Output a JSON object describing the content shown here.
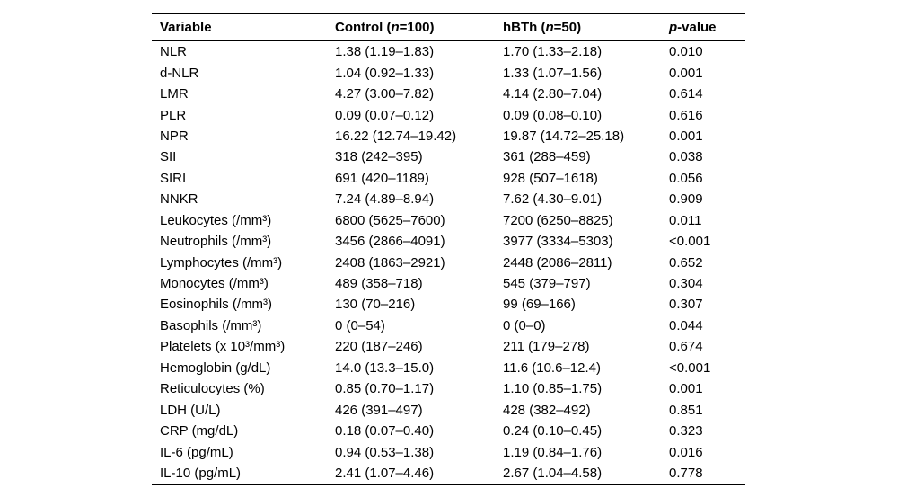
{
  "page": {
    "background": "#ffffff",
    "text_color": "#000000"
  },
  "table": {
    "header": {
      "variable": "Variable",
      "control_pre": "Control (",
      "control_n": "n",
      "control_post": "=100)",
      "hbth_pre": "hBTh (",
      "hbth_n": "n",
      "hbth_post": "=50)",
      "p_italic": "p",
      "p_post": "-value"
    },
    "rows": [
      {
        "variable": "NLR",
        "control": "1.38 (1.19–1.83)",
        "hbth": "1.70 (1.33–2.18)",
        "p": "0.010"
      },
      {
        "variable": "d-NLR",
        "control": "1.04 (0.92–1.33)",
        "hbth": "1.33 (1.07–1.56)",
        "p": "0.001"
      },
      {
        "variable": "LMR",
        "control": "4.27 (3.00–7.82)",
        "hbth": "4.14 (2.80–7.04)",
        "p": "0.614"
      },
      {
        "variable": "PLR",
        "control": "0.09 (0.07–0.12)",
        "hbth": "0.09 (0.08–0.10)",
        "p": "0.616"
      },
      {
        "variable": "NPR",
        "control": "16.22 (12.74–19.42)",
        "hbth": "19.87 (14.72–25.18)",
        "p": "0.001"
      },
      {
        "variable": "SII",
        "control": "318 (242–395)",
        "hbth": "361 (288–459)",
        "p": "0.038"
      },
      {
        "variable": "SIRI",
        "control": "691 (420–1189)",
        "hbth": "928 (507–1618)",
        "p": "0.056"
      },
      {
        "variable": "NNKR",
        "control": "7.24 (4.89–8.94)",
        "hbth": "7.62 (4.30–9.01)",
        "p": "0.909"
      },
      {
        "variable": "Leukocytes (/mm³)",
        "control": "6800 (5625–7600)",
        "hbth": "7200 (6250–8825)",
        "p": "0.011"
      },
      {
        "variable": "Neutrophils (/mm³)",
        "control": "3456 (2866–4091)",
        "hbth": "3977 (3334–5303)",
        "p": "<0.001"
      },
      {
        "variable": "Lymphocytes (/mm³)",
        "control": "2408 (1863–2921)",
        "hbth": "2448 (2086–2811)",
        "p": "0.652"
      },
      {
        "variable": "Monocytes (/mm³)",
        "control": "489 (358–718)",
        "hbth": "545 (379–797)",
        "p": "0.304"
      },
      {
        "variable": "Eosinophils (/mm³)",
        "control": "130 (70–216)",
        "hbth": "99 (69–166)",
        "p": "0.307"
      },
      {
        "variable": "Basophils (/mm³)",
        "control": "0 (0–54)",
        "hbth": "0 (0–0)",
        "p": "0.044"
      },
      {
        "variable": "Platelets (x 10³/mm³)",
        "control": "220 (187–246)",
        "hbth": "211 (179–278)",
        "p": "0.674"
      },
      {
        "variable": "Hemoglobin (g/dL)",
        "control": "14.0 (13.3–15.0)",
        "hbth": "11.6 (10.6–12.4)",
        "p": "<0.001"
      },
      {
        "variable": "Reticulocytes (%)",
        "control": "0.85 (0.70–1.17)",
        "hbth": "1.10 (0.85–1.75)",
        "p": "0.001"
      },
      {
        "variable": "LDH (U/L)",
        "control": "426 (391–497)",
        "hbth": "428 (382–492)",
        "p": "0.851"
      },
      {
        "variable": "CRP (mg/dL)",
        "control": "0.18 (0.07–0.40)",
        "hbth": "0.24 (0.10–0.45)",
        "p": "0.323"
      },
      {
        "variable": "IL-6 (pg/mL)",
        "control": "0.94 (0.53–1.38)",
        "hbth": "1.19 (0.84–1.76)",
        "p": "0.016"
      },
      {
        "variable": "IL-10 (pg/mL)",
        "control": "2.41 (1.07–4.46)",
        "hbth": "2.67 (1.04–4.58)",
        "p": "0.778"
      }
    ]
  }
}
